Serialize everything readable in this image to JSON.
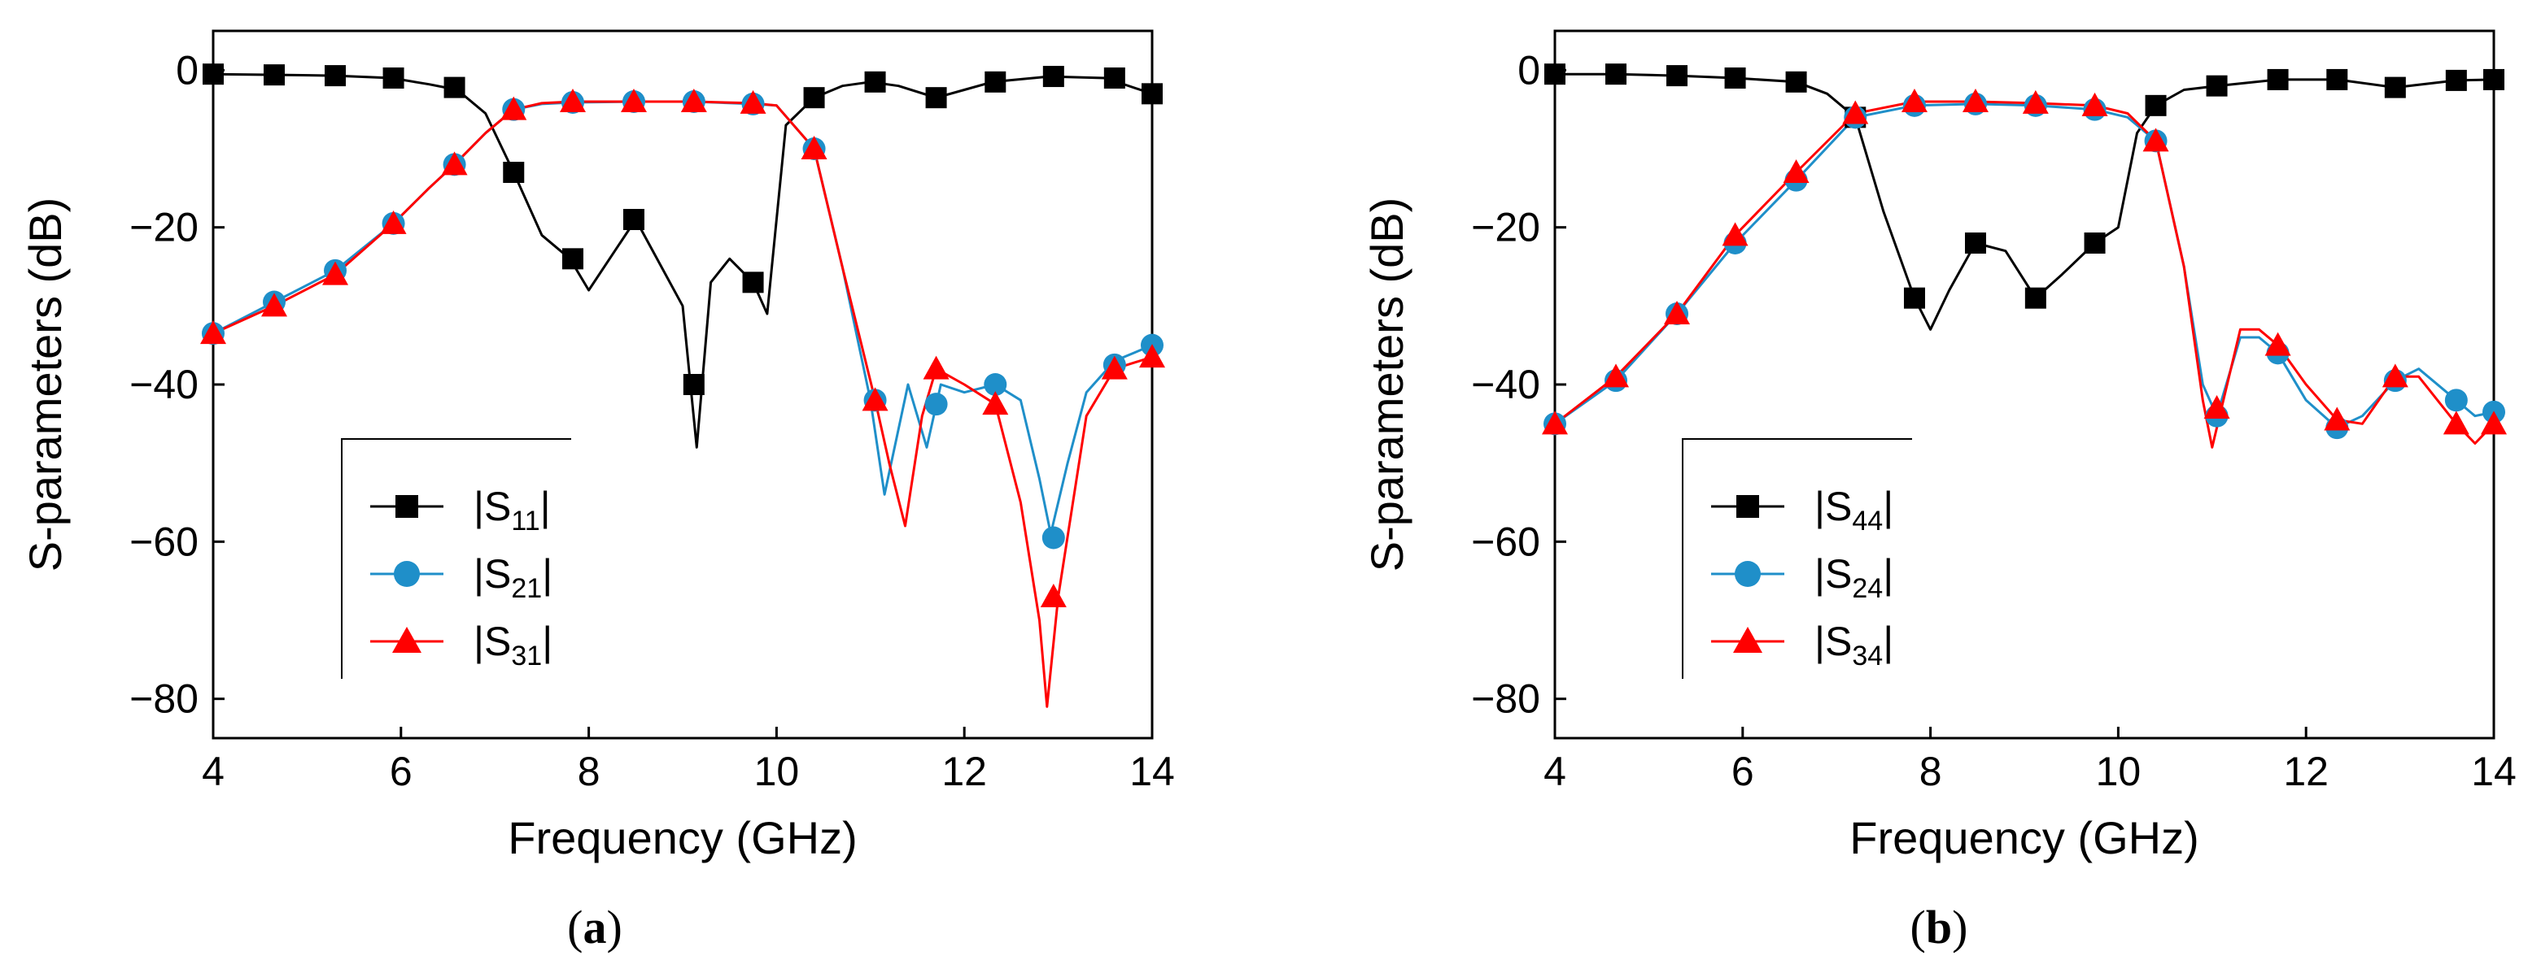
{
  "figure": {
    "captions": [
      {
        "open": "(",
        "letter": "a",
        "close": ")"
      },
      {
        "open": "(",
        "letter": "b",
        "close": ")"
      }
    ]
  },
  "chart_data": [
    {
      "type": "line",
      "xlabel": "Frequency (GHz)",
      "ylabel": "S-parameters (dB)",
      "xlim": [
        4,
        14
      ],
      "ylim": [
        -85,
        5
      ],
      "xticks": [
        "4",
        "6",
        "8",
        "10",
        "12",
        "14"
      ],
      "yticks": [
        "0",
        "−20",
        "−40",
        "−60",
        "−80"
      ],
      "xtick_values": [
        4,
        6,
        8,
        10,
        12,
        14
      ],
      "ytick_values": [
        0,
        -20,
        -40,
        -60,
        -80
      ],
      "legend_position": "bottom-left",
      "series": [
        {
          "name_main": "S",
          "name_sub": "11",
          "color": "#000000",
          "marker": "square",
          "x": [
            4.0,
            4.7,
            5.3,
            5.9,
            6.3,
            6.6,
            6.9,
            7.2,
            7.5,
            7.8,
            8.0,
            8.5,
            9.0,
            9.15,
            9.3,
            9.5,
            9.75,
            9.9,
            10.1,
            10.4,
            10.7,
            11.0,
            11.3,
            11.7,
            12.0,
            12.3,
            12.9,
            13.5,
            14.0
          ],
          "y": [
            -0.5,
            -0.6,
            -0.7,
            -1.0,
            -1.8,
            -2.5,
            -5.5,
            -13,
            -21,
            -24,
            -28,
            -19,
            -30,
            -48,
            -27,
            -24,
            -27,
            -31,
            -7,
            -3.5,
            -2,
            -1.5,
            -2,
            -3.5,
            -2.5,
            -1.5,
            -0.8,
            -1,
            -3
          ],
          "marker_x": [
            4.0,
            4.65,
            5.3,
            5.92,
            6.57,
            7.2,
            7.83,
            8.48,
            9.12,
            9.75,
            10.4,
            11.05,
            11.7,
            12.33,
            12.95,
            13.6,
            14.0
          ],
          "marker_y": [
            -0.5,
            -0.6,
            -0.7,
            -1.0,
            -2.2,
            -13,
            -24,
            -19,
            -40,
            -27,
            -3.5,
            -1.5,
            -3.5,
            -1.5,
            -0.8,
            -1,
            -3
          ]
        },
        {
          "name_main": "S",
          "name_sub": "21",
          "color": "#1f8fc9",
          "marker": "circle",
          "x": [
            4.0,
            4.65,
            5.3,
            5.92,
            6.3,
            6.57,
            6.9,
            7.2,
            7.5,
            7.83,
            8.48,
            9.12,
            9.75,
            10.0,
            10.4,
            10.7,
            11.0,
            11.15,
            11.4,
            11.6,
            11.75,
            12.0,
            12.33,
            12.6,
            12.8,
            12.92,
            13.1,
            13.3,
            13.6,
            14.0
          ],
          "y": [
            -33.5,
            -29.5,
            -25.5,
            -19.5,
            -15,
            -12,
            -8,
            -5,
            -4.3,
            -4.1,
            -4.0,
            -4.0,
            -4.3,
            -4.5,
            -10,
            -25,
            -42,
            -54,
            -40,
            -48,
            -40,
            -41,
            -40,
            -42,
            -52,
            -59,
            -50,
            -41,
            -37,
            -35
          ],
          "marker_x": [
            4.0,
            4.65,
            5.3,
            5.92,
            6.57,
            7.2,
            7.83,
            8.48,
            9.12,
            9.75,
            10.4,
            11.05,
            11.7,
            12.33,
            12.95,
            13.6,
            14.0
          ],
          "marker_y": [
            -33.5,
            -29.5,
            -25.5,
            -19.5,
            -12,
            -5,
            -4.1,
            -4.0,
            -4.0,
            -4.3,
            -10,
            -42,
            -42.5,
            -40,
            -59.5,
            -37.5,
            -35
          ]
        },
        {
          "name_main": "S",
          "name_sub": "31",
          "color": "#ff0000",
          "marker": "triangle",
          "x": [
            4.0,
            4.65,
            5.3,
            5.92,
            6.3,
            6.57,
            6.9,
            7.2,
            7.5,
            7.83,
            8.48,
            9.12,
            9.75,
            10.0,
            10.4,
            10.7,
            11.05,
            11.2,
            11.37,
            11.55,
            11.7,
            12.0,
            12.33,
            12.6,
            12.8,
            12.88,
            13.0,
            13.3,
            13.6,
            14.0
          ],
          "y": [
            -33.5,
            -30,
            -26,
            -19.5,
            -15,
            -12,
            -8,
            -5,
            -4.2,
            -4.0,
            -4.0,
            -4.0,
            -4.2,
            -4.5,
            -10,
            -25,
            -42,
            -50,
            -58,
            -44,
            -38,
            -40,
            -42.5,
            -55,
            -70,
            -81,
            -67,
            -44,
            -38,
            -36.5
          ],
          "marker_x": [
            4.0,
            4.65,
            5.3,
            5.92,
            6.57,
            7.2,
            7.83,
            8.48,
            9.12,
            9.75,
            10.4,
            11.05,
            11.7,
            12.33,
            12.95,
            13.6,
            14.0
          ],
          "marker_y": [
            -33.5,
            -30,
            -26,
            -19.5,
            -12,
            -5,
            -4.0,
            -4.0,
            -4.0,
            -4.2,
            -10,
            -42,
            -38,
            -42.5,
            -67,
            -38,
            -36.5
          ]
        }
      ]
    },
    {
      "type": "line",
      "xlabel": "Frequency (GHz)",
      "ylabel": "S-parameters (dB)",
      "xlim": [
        4,
        14
      ],
      "ylim": [
        -85,
        5
      ],
      "xticks": [
        "4",
        "6",
        "8",
        "10",
        "12",
        "14"
      ],
      "yticks": [
        "0",
        "−20",
        "−40",
        "−60",
        "−80"
      ],
      "xtick_values": [
        4,
        6,
        8,
        10,
        12,
        14
      ],
      "ytick_values": [
        0,
        -20,
        -40,
        -60,
        -80
      ],
      "legend_position": "bottom-left",
      "series": [
        {
          "name_main": "S",
          "name_sub": "44",
          "color": "#000000",
          "marker": "square",
          "x": [
            4.0,
            4.65,
            5.3,
            5.92,
            6.57,
            6.9,
            7.2,
            7.5,
            7.83,
            8.0,
            8.2,
            8.48,
            8.8,
            9.12,
            9.4,
            9.75,
            10.0,
            10.2,
            10.4,
            10.7,
            11.05,
            11.7,
            12.33,
            12.95,
            13.6,
            14.0
          ],
          "y": [
            -0.5,
            -0.5,
            -0.7,
            -1.0,
            -1.5,
            -3,
            -6,
            -18,
            -29,
            -33,
            -28,
            -22,
            -23,
            -29,
            -26,
            -22,
            -20,
            -8,
            -4.5,
            -2.5,
            -2,
            -1.2,
            -1.2,
            -2.2,
            -1.3,
            -1.2
          ],
          "marker_x": [
            4.0,
            4.65,
            5.3,
            5.92,
            6.57,
            7.2,
            7.83,
            8.48,
            9.12,
            9.75,
            10.4,
            11.05,
            11.7,
            12.33,
            12.95,
            13.6,
            14.0
          ],
          "marker_y": [
            -0.5,
            -0.5,
            -0.7,
            -1.0,
            -1.5,
            -6,
            -29,
            -22,
            -29,
            -22,
            -4.5,
            -2,
            -1.2,
            -1.2,
            -2.2,
            -1.3,
            -1.2
          ]
        },
        {
          "name_main": "S",
          "name_sub": "24",
          "color": "#1f8fc9",
          "marker": "circle",
          "x": [
            4.0,
            4.65,
            5.3,
            5.92,
            6.57,
            7.2,
            7.83,
            8.48,
            9.12,
            9.75,
            10.1,
            10.4,
            10.7,
            10.9,
            11.05,
            11.3,
            11.5,
            11.7,
            12.0,
            12.33,
            12.6,
            12.95,
            13.2,
            13.6,
            13.8,
            14.0
          ],
          "y": [
            -45,
            -39.5,
            -31,
            -22,
            -14,
            -6,
            -4.5,
            -4.3,
            -4.5,
            -5,
            -6,
            -9,
            -25,
            -40,
            -44,
            -34,
            -34,
            -36,
            -42,
            -45.5,
            -44,
            -39.5,
            -38,
            -42,
            -44,
            -43.5
          ],
          "marker_x": [
            4.0,
            4.65,
            5.3,
            5.92,
            6.57,
            7.2,
            7.83,
            8.48,
            9.12,
            9.75,
            10.4,
            11.05,
            11.7,
            12.33,
            12.95,
            13.6,
            14.0
          ],
          "marker_y": [
            -45,
            -39.5,
            -31,
            -22,
            -14,
            -6,
            -4.5,
            -4.3,
            -4.5,
            -5,
            -9,
            -44,
            -36,
            -45.5,
            -39.5,
            -42,
            -43.5
          ]
        },
        {
          "name_main": "S",
          "name_sub": "34",
          "color": "#ff0000",
          "marker": "triangle",
          "x": [
            4.0,
            4.65,
            5.3,
            5.92,
            6.57,
            7.2,
            7.83,
            8.48,
            9.12,
            9.75,
            10.1,
            10.4,
            10.7,
            10.9,
            11.0,
            11.3,
            11.5,
            11.7,
            12.0,
            12.33,
            12.6,
            12.95,
            13.2,
            13.6,
            13.8,
            14.0
          ],
          "y": [
            -45,
            -39,
            -31,
            -21,
            -13,
            -5.5,
            -4,
            -4,
            -4.2,
            -4.5,
            -5.5,
            -9,
            -25,
            -42,
            -48,
            -33,
            -33,
            -35,
            -40,
            -44.5,
            -45,
            -39,
            -39,
            -45,
            -47.5,
            -45
          ],
          "marker_x": [
            4.0,
            4.65,
            5.3,
            5.92,
            6.57,
            7.2,
            7.83,
            8.48,
            9.12,
            9.75,
            10.4,
            11.05,
            11.7,
            12.33,
            12.95,
            13.6,
            14.0
          ],
          "marker_y": [
            -45,
            -39,
            -31,
            -21,
            -13,
            -5.5,
            -4,
            -4,
            -4.2,
            -4.5,
            -9,
            -43,
            -35,
            -44.5,
            -39,
            -45,
            -45
          ]
        }
      ]
    }
  ]
}
